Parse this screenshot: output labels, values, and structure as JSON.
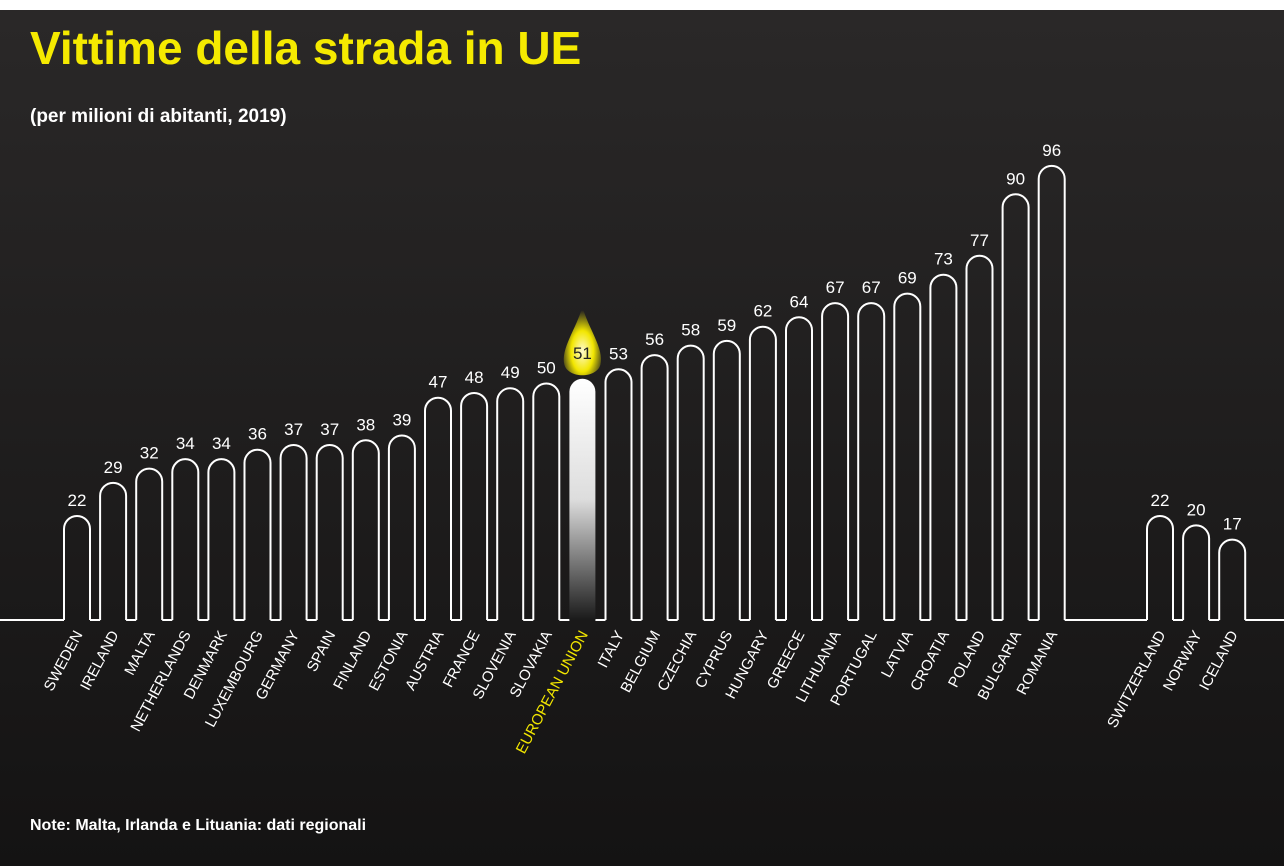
{
  "chart_data": {
    "type": "bar",
    "title": "Vittime della strada in UE",
    "subtitle": "(per milioni di abitanti, 2019)",
    "note": "Note: Malta, Irlanda e Lituania: dati regionali",
    "categories": [
      "SWEDEN",
      "IRELAND",
      "MALTA",
      "NETHERLANDS",
      "DENMARK",
      "LUXEMBOURG",
      "GERMANY",
      "SPAIN",
      "FINLAND",
      "ESTONIA",
      "AUSTRIA",
      "FRANCE",
      "SLOVENIA",
      "SLOVAKIA",
      "EUROPEAN UNION",
      "ITALY",
      "BELGIUM",
      "CZECHIA",
      "CYPRUS",
      "HUNGARY",
      "GREECE",
      "LITHUANIA",
      "PORTUGAL",
      "LATVIA",
      "CROATIA",
      "POLAND",
      "BULGARIA",
      "ROMANIA",
      "SWITZERLAND",
      "NORWAY",
      "ICELAND"
    ],
    "values": [
      22,
      29,
      32,
      34,
      34,
      36,
      37,
      37,
      38,
      39,
      47,
      48,
      49,
      50,
      51,
      53,
      56,
      58,
      59,
      62,
      64,
      67,
      67,
      69,
      73,
      77,
      90,
      96,
      22,
      20,
      17
    ],
    "color": "#ffffff",
    "highlight_category": "EUROPEAN UNION",
    "highlight_color": "#f2e600",
    "ylim": [
      0,
      100
    ]
  }
}
